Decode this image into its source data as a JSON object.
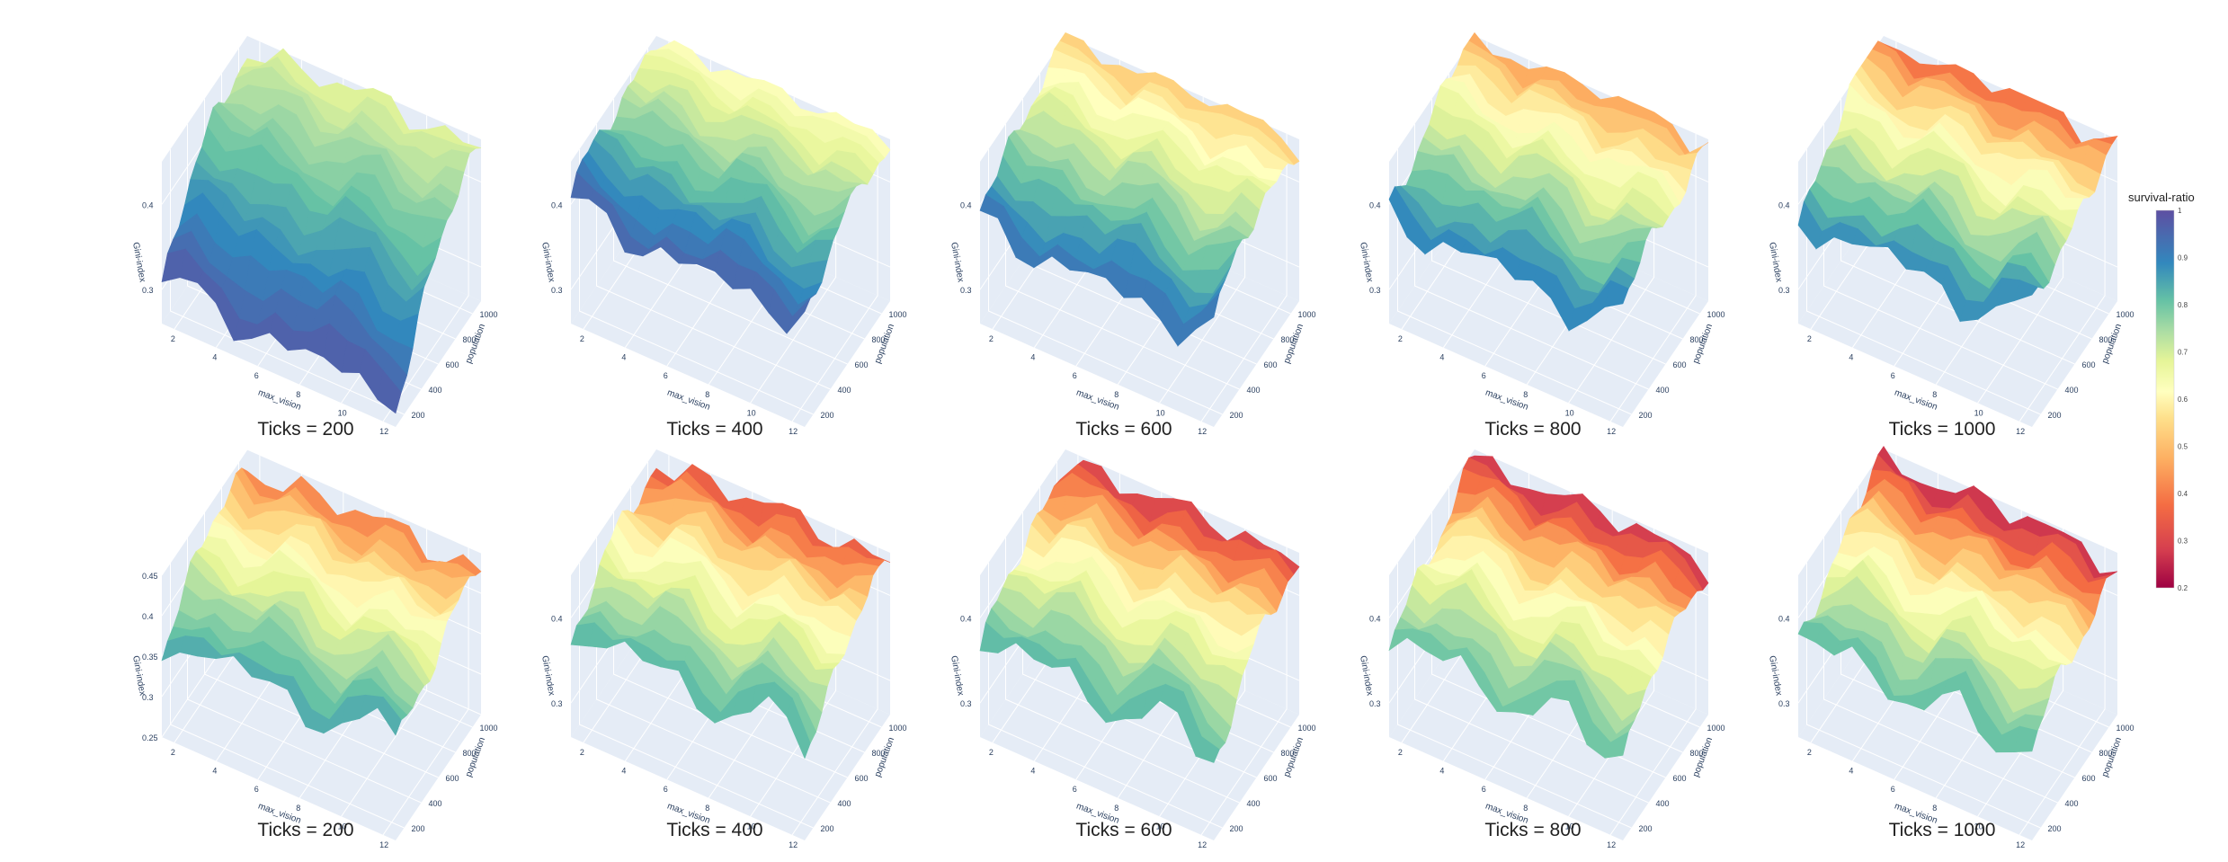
{
  "colors": {
    "pane": "#e5ecf6",
    "grid": "#ffffff",
    "axis_text": "#2a3f5f",
    "colorscale_Spectral": [
      "#9e0142",
      "#d53e4f",
      "#f46d43",
      "#fdae61",
      "#fee08b",
      "#ffffbf",
      "#e6f598",
      "#abdda4",
      "#66c2a5",
      "#3288bd",
      "#5e4fa2"
    ]
  },
  "chart_data": [
    {
      "type": "surface",
      "row": 1,
      "col": 1,
      "title": "Ticks = 200",
      "xlabel": "max_vision",
      "ylabel": "population",
      "zlabel": "Gini-index",
      "x_ticks": [
        "2",
        "4",
        "6",
        "8",
        "10",
        "12"
      ],
      "y_ticks": [
        "200",
        "400",
        "600",
        "800",
        "1000"
      ],
      "z_ticks": [
        "0.3",
        "0.4"
      ],
      "zlim": [
        0.26,
        0.45
      ],
      "surface_summary": {
        "gini_low_pop": 0.44,
        "gini_high_pop": 0.3,
        "survival_low_pop": 0.68,
        "survival_high_pop": 0.98
      }
    },
    {
      "type": "surface",
      "row": 1,
      "col": 2,
      "title": "Ticks = 400",
      "xlabel": "max_vision",
      "ylabel": "population",
      "zlabel": "Gini-index",
      "x_ticks": [
        "2",
        "4",
        "6",
        "8",
        "10",
        "12"
      ],
      "y_ticks": [
        "200",
        "400",
        "600",
        "800",
        "1000"
      ],
      "z_ticks": [
        "0.3",
        "0.4"
      ],
      "zlim": [
        0.26,
        0.45
      ],
      "surface_summary": {
        "gini_low_pop": 0.45,
        "gini_high_pop": 0.39,
        "survival_low_pop": 0.6,
        "survival_high_pop": 0.97
      }
    },
    {
      "type": "surface",
      "row": 1,
      "col": 3,
      "title": "Ticks = 600",
      "xlabel": "max_vision",
      "ylabel": "population",
      "zlabel": "Gini-index",
      "x_ticks": [
        "2",
        "4",
        "6",
        "8",
        "10",
        "12"
      ],
      "y_ticks": [
        "200",
        "400",
        "600",
        "800",
        "1000"
      ],
      "z_ticks": [
        "0.3",
        "0.4"
      ],
      "zlim": [
        0.26,
        0.45
      ],
      "surface_summary": {
        "gini_low_pop": 0.45,
        "gini_high_pop": 0.37,
        "survival_low_pop": 0.48,
        "survival_high_pop": 0.95
      }
    },
    {
      "type": "surface",
      "row": 1,
      "col": 4,
      "title": "Ticks = 800",
      "xlabel": "max_vision",
      "ylabel": "population",
      "zlabel": "Gini-index",
      "x_ticks": [
        "2",
        "4",
        "6",
        "8",
        "10",
        "12"
      ],
      "y_ticks": [
        "200",
        "400",
        "600",
        "800",
        "1000"
      ],
      "z_ticks": [
        "0.3",
        "0.4"
      ],
      "zlim": [
        0.26,
        0.45
      ],
      "surface_summary": {
        "gini_low_pop": 0.45,
        "gini_high_pop": 0.38,
        "survival_low_pop": 0.42,
        "survival_high_pop": 0.93
      }
    },
    {
      "type": "surface",
      "row": 1,
      "col": 5,
      "title": "Ticks = 1000",
      "xlabel": "max_vision",
      "ylabel": "population",
      "zlabel": "Gini-index",
      "x_ticks": [
        "2",
        "4",
        "6",
        "8",
        "10",
        "12"
      ],
      "y_ticks": [
        "200",
        "400",
        "600",
        "800",
        "1000"
      ],
      "z_ticks": [
        "0.3",
        "0.4"
      ],
      "zlim": [
        0.26,
        0.45
      ],
      "surface_summary": {
        "gini_low_pop": 0.45,
        "gini_high_pop": 0.38,
        "survival_low_pop": 0.35,
        "survival_high_pop": 0.92
      }
    },
    {
      "type": "surface",
      "row": 2,
      "col": 1,
      "title": "Ticks = 200",
      "xlabel": "max_vision",
      "ylabel": "population",
      "zlabel": "Gini-index",
      "x_ticks": [
        "2",
        "4",
        "6",
        "8",
        "10",
        "12"
      ],
      "y_ticks": [
        "200",
        "400",
        "600",
        "800",
        "1000"
      ],
      "z_ticks": [
        "0.25",
        "0.3",
        "0.35",
        "0.4",
        "0.45"
      ],
      "zlim": [
        0.25,
        0.45
      ],
      "surface_summary": {
        "gini_low_pop": 0.43,
        "gini_high_pop": 0.37,
        "survival_low_pop": 0.38,
        "survival_high_pop": 0.88
      }
    },
    {
      "type": "surface",
      "row": 2,
      "col": 2,
      "title": "Ticks = 400",
      "xlabel": "max_vision",
      "ylabel": "population",
      "zlabel": "Gini-index",
      "x_ticks": [
        "2",
        "4",
        "6",
        "8",
        "10",
        "12"
      ],
      "y_ticks": [
        "200",
        "400",
        "600",
        "800",
        "1000"
      ],
      "z_ticks": [
        "0.3",
        "0.4"
      ],
      "zlim": [
        0.26,
        0.45
      ],
      "surface_summary": {
        "gini_low_pop": 0.44,
        "gini_high_pop": 0.38,
        "survival_low_pop": 0.32,
        "survival_high_pop": 0.86
      }
    },
    {
      "type": "surface",
      "row": 2,
      "col": 3,
      "title": "Ticks = 600",
      "xlabel": "max_vision",
      "ylabel": "population",
      "zlabel": "Gini-index",
      "x_ticks": [
        "2",
        "4",
        "6",
        "8",
        "10",
        "12"
      ],
      "y_ticks": [
        "200",
        "400",
        "600",
        "800",
        "1000"
      ],
      "z_ticks": [
        "0.3",
        "0.4"
      ],
      "zlim": [
        0.26,
        0.45
      ],
      "surface_summary": {
        "gini_low_pop": 0.44,
        "gini_high_pop": 0.37,
        "survival_low_pop": 0.28,
        "survival_high_pop": 0.86
      }
    },
    {
      "type": "surface",
      "row": 2,
      "col": 4,
      "title": "Ticks = 800",
      "xlabel": "max_vision",
      "ylabel": "population",
      "zlabel": "Gini-index",
      "x_ticks": [
        "2",
        "4",
        "6",
        "8",
        "10",
        "12"
      ],
      "y_ticks": [
        "200",
        "400",
        "600",
        "800",
        "1000"
      ],
      "z_ticks": [
        "0.3",
        "0.4"
      ],
      "zlim": [
        0.26,
        0.45
      ],
      "surface_summary": {
        "gini_low_pop": 0.44,
        "gini_high_pop": 0.37,
        "survival_low_pop": 0.26,
        "survival_high_pop": 0.84
      }
    },
    {
      "type": "surface",
      "row": 2,
      "col": 5,
      "title": "Ticks = 1000",
      "xlabel": "max_vision",
      "ylabel": "population",
      "zlabel": "Gini-index",
      "x_ticks": [
        "2",
        "4",
        "6",
        "8",
        "10",
        "12"
      ],
      "y_ticks": [
        "200",
        "400",
        "600",
        "800",
        "1000"
      ],
      "z_ticks": [
        "0.3",
        "0.4"
      ],
      "zlim": [
        0.26,
        0.45
      ],
      "surface_summary": {
        "gini_low_pop": 0.44,
        "gini_high_pop": 0.37,
        "survival_low_pop": 0.25,
        "survival_high_pop": 0.85
      }
    }
  ],
  "colorbar": {
    "title": "survival-ratio",
    "range": [
      0.2,
      1
    ],
    "ticks": [
      "1",
      "0.9",
      "0.8",
      "0.7",
      "0.6",
      "0.5",
      "0.4",
      "0.3",
      "0.2"
    ]
  }
}
